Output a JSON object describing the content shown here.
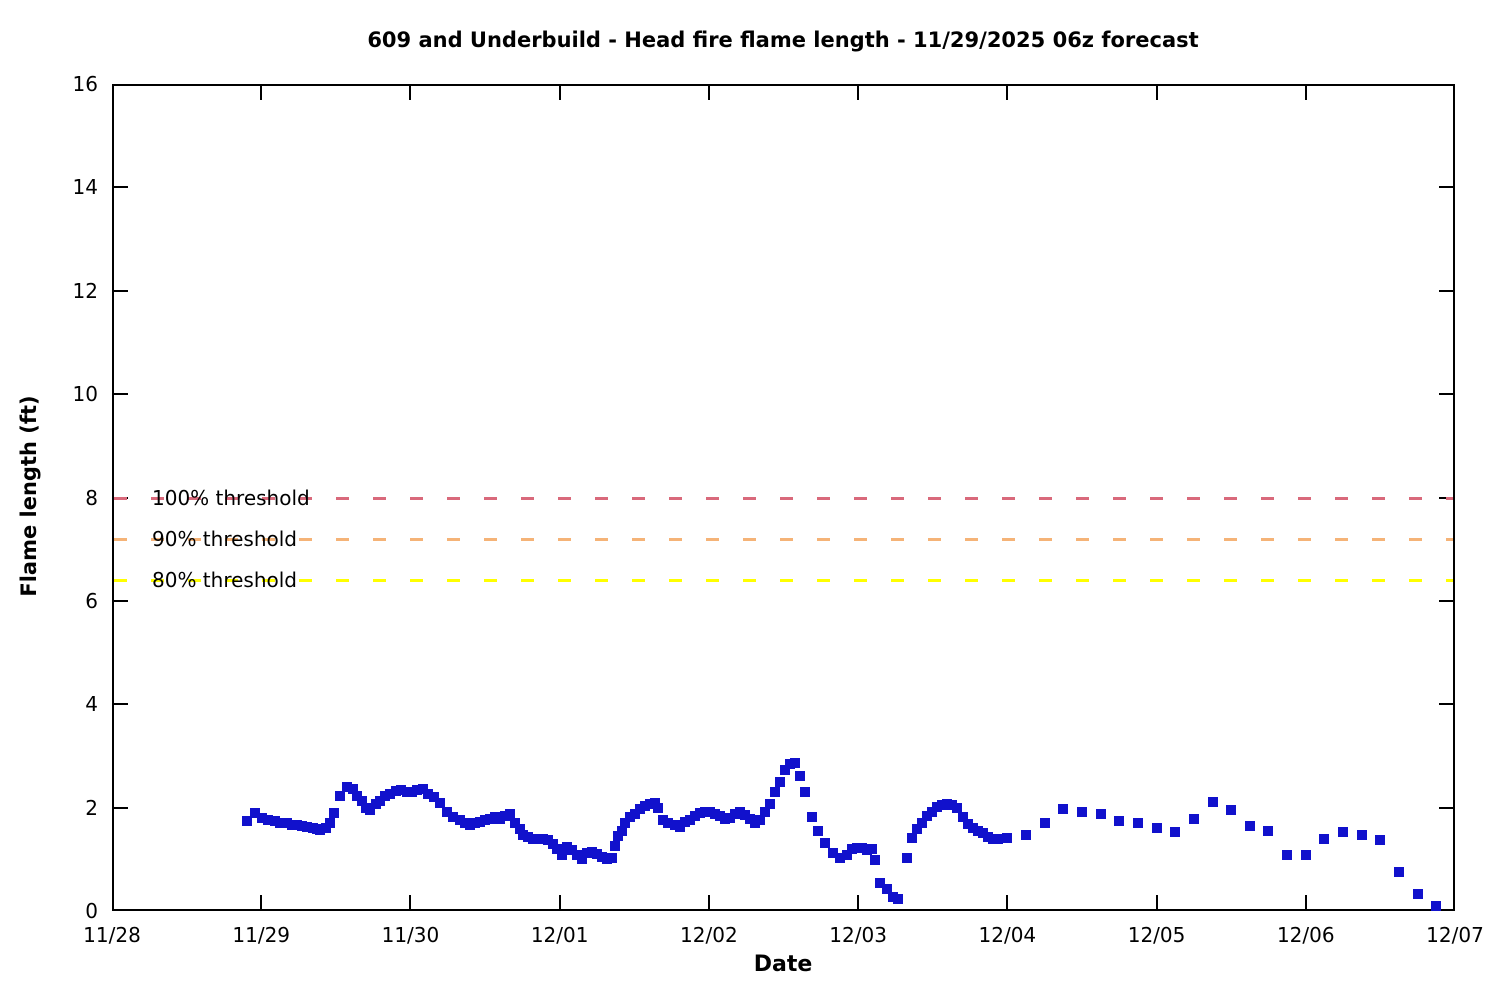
{
  "chart_data": {
    "type": "scatter",
    "title": "609 and Underbuild - Head fire flame length - 11/29/2025 06z forecast",
    "xlabel": "Date",
    "ylabel": "Flame length (ft)",
    "marker": "square",
    "marker_color": "#1111cc",
    "grid": false,
    "x_axis": {
      "unit": "days since 11/28 00:00",
      "range": [
        0,
        9
      ],
      "tick_labels": [
        "11/28",
        "11/29",
        "11/30",
        "12/01",
        "12/02",
        "12/03",
        "12/04",
        "12/05",
        "12/06",
        "12/07"
      ]
    },
    "y_axis": {
      "range": [
        0,
        16
      ],
      "ticks": [
        0,
        2,
        4,
        6,
        8,
        10,
        12,
        14,
        16
      ]
    },
    "thresholds": [
      {
        "label": "100% threshold",
        "value": 8.0,
        "color": "#d9697b"
      },
      {
        "label": "90% threshold",
        "value": 7.2,
        "color": "#f5b377"
      },
      {
        "label": "80% threshold",
        "value": 6.4,
        "color": "#ffff00"
      }
    ],
    "series": [
      {
        "name": "Head fire flame length (ft)",
        "points": [
          [
            0.903,
            1.74
          ],
          [
            0.958,
            1.89
          ],
          [
            1.003,
            1.8
          ],
          [
            1.048,
            1.76
          ],
          [
            1.092,
            1.74
          ],
          [
            1.126,
            1.71
          ],
          [
            1.171,
            1.7
          ],
          [
            1.204,
            1.67
          ],
          [
            1.238,
            1.67
          ],
          [
            1.271,
            1.65
          ],
          [
            1.305,
            1.63
          ],
          [
            1.349,
            1.61
          ],
          [
            1.376,
            1.58
          ],
          [
            1.394,
            1.56
          ],
          [
            1.434,
            1.6
          ],
          [
            1.461,
            1.71
          ],
          [
            1.488,
            1.89
          ],
          [
            1.528,
            2.23
          ],
          [
            1.573,
            2.39
          ],
          [
            1.613,
            2.36
          ],
          [
            1.644,
            2.23
          ],
          [
            1.673,
            2.13
          ],
          [
            1.702,
            2.0
          ],
          [
            1.729,
            1.96
          ],
          [
            1.767,
            2.07
          ],
          [
            1.796,
            2.13
          ],
          [
            1.83,
            2.22
          ],
          [
            1.863,
            2.26
          ],
          [
            1.903,
            2.33
          ],
          [
            1.935,
            2.35
          ],
          [
            1.975,
            2.3
          ],
          [
            2.008,
            2.3
          ],
          [
            2.046,
            2.35
          ],
          [
            2.086,
            2.36
          ],
          [
            2.12,
            2.26
          ],
          [
            2.158,
            2.2
          ],
          [
            2.198,
            2.09
          ],
          [
            2.243,
            1.92
          ],
          [
            2.283,
            1.81
          ],
          [
            2.332,
            1.76
          ],
          [
            2.366,
            1.71
          ],
          [
            2.399,
            1.67
          ],
          [
            2.433,
            1.7
          ],
          [
            2.466,
            1.72
          ],
          [
            2.5,
            1.76
          ],
          [
            2.533,
            1.78
          ],
          [
            2.567,
            1.81
          ],
          [
            2.6,
            1.78
          ],
          [
            2.634,
            1.83
          ],
          [
            2.667,
            1.87
          ],
          [
            2.701,
            1.71
          ],
          [
            2.734,
            1.58
          ],
          [
            2.757,
            1.48
          ],
          [
            2.79,
            1.44
          ],
          [
            2.824,
            1.4
          ],
          [
            2.857,
            1.39
          ],
          [
            2.891,
            1.4
          ],
          [
            2.924,
            1.37
          ],
          [
            2.958,
            1.29
          ],
          [
            2.981,
            1.19
          ],
          [
            3.014,
            1.09
          ],
          [
            3.048,
            1.23
          ],
          [
            3.081,
            1.18
          ],
          [
            3.115,
            1.08
          ],
          [
            3.148,
            1.01
          ],
          [
            3.182,
            1.13
          ],
          [
            3.215,
            1.14
          ],
          [
            3.249,
            1.11
          ],
          [
            3.282,
            1.05
          ],
          [
            3.316,
            1.0
          ],
          [
            3.349,
            1.03
          ],
          [
            3.371,
            1.26
          ],
          [
            3.393,
            1.45
          ],
          [
            3.416,
            1.55
          ],
          [
            3.438,
            1.71
          ],
          [
            3.472,
            1.81
          ],
          [
            3.505,
            1.87
          ],
          [
            3.539,
            1.97
          ],
          [
            3.572,
            2.04
          ],
          [
            3.606,
            2.07
          ],
          [
            3.639,
            2.09
          ],
          [
            3.661,
            2.0
          ],
          [
            3.695,
            1.76
          ],
          [
            3.728,
            1.71
          ],
          [
            3.773,
            1.67
          ],
          [
            3.807,
            1.63
          ],
          [
            3.84,
            1.72
          ],
          [
            3.874,
            1.76
          ],
          [
            3.907,
            1.84
          ],
          [
            3.941,
            1.89
          ],
          [
            3.974,
            1.91
          ],
          [
            4.008,
            1.92
          ],
          [
            4.041,
            1.87
          ],
          [
            4.075,
            1.83
          ],
          [
            4.108,
            1.78
          ],
          [
            4.142,
            1.8
          ],
          [
            4.175,
            1.87
          ],
          [
            4.209,
            1.91
          ],
          [
            4.242,
            1.86
          ],
          [
            4.276,
            1.78
          ],
          [
            4.309,
            1.71
          ],
          [
            4.343,
            1.76
          ],
          [
            4.376,
            1.91
          ],
          [
            4.41,
            2.07
          ],
          [
            4.443,
            2.3
          ],
          [
            4.477,
            2.5
          ],
          [
            4.51,
            2.72
          ],
          [
            4.544,
            2.85
          ],
          [
            4.577,
            2.87
          ],
          [
            4.611,
            2.62
          ],
          [
            4.644,
            2.31
          ],
          [
            4.689,
            1.81
          ],
          [
            4.733,
            1.55
          ],
          [
            4.778,
            1.32
          ],
          [
            4.834,
            1.13
          ],
          [
            4.879,
            1.03
          ],
          [
            4.924,
            1.08
          ],
          [
            4.957,
            1.19
          ],
          [
            4.991,
            1.21
          ],
          [
            5.024,
            1.21
          ],
          [
            5.058,
            1.18
          ],
          [
            5.091,
            1.19
          ],
          [
            5.114,
            0.98
          ],
          [
            5.147,
            0.54
          ],
          [
            5.192,
            0.42
          ],
          [
            5.232,
            0.27
          ],
          [
            5.27,
            0.24
          ],
          [
            5.326,
            1.03
          ],
          [
            5.362,
            1.42
          ],
          [
            5.395,
            1.58
          ],
          [
            5.429,
            1.71
          ],
          [
            5.462,
            1.84
          ],
          [
            5.496,
            1.92
          ],
          [
            5.529,
            2.01
          ],
          [
            5.563,
            2.05
          ],
          [
            5.596,
            2.07
          ],
          [
            5.63,
            2.05
          ],
          [
            5.663,
            2.0
          ],
          [
            5.706,
            1.81
          ],
          [
            5.739,
            1.68
          ],
          [
            5.773,
            1.6
          ],
          [
            5.806,
            1.55
          ],
          [
            5.84,
            1.5
          ],
          [
            5.873,
            1.44
          ],
          [
            5.907,
            1.4
          ],
          [
            5.94,
            1.39
          ],
          [
            6.0,
            1.42
          ],
          [
            6.125,
            1.48
          ],
          [
            6.25,
            1.7
          ],
          [
            6.375,
            1.98
          ],
          [
            6.5,
            1.92
          ],
          [
            6.625,
            1.87
          ],
          [
            6.75,
            1.74
          ],
          [
            6.875,
            1.71
          ],
          [
            7.0,
            1.6
          ],
          [
            7.125,
            1.52
          ],
          [
            7.25,
            1.78
          ],
          [
            7.375,
            2.1
          ],
          [
            7.5,
            1.96
          ],
          [
            7.625,
            1.65
          ],
          [
            7.75,
            1.54
          ],
          [
            7.875,
            1.09
          ],
          [
            8.0,
            1.09
          ],
          [
            8.125,
            1.4
          ],
          [
            8.25,
            1.53
          ],
          [
            8.375,
            1.47
          ],
          [
            8.5,
            1.37
          ],
          [
            8.625,
            0.75
          ],
          [
            8.75,
            0.32
          ],
          [
            8.875,
            0.1
          ]
        ]
      }
    ]
  }
}
